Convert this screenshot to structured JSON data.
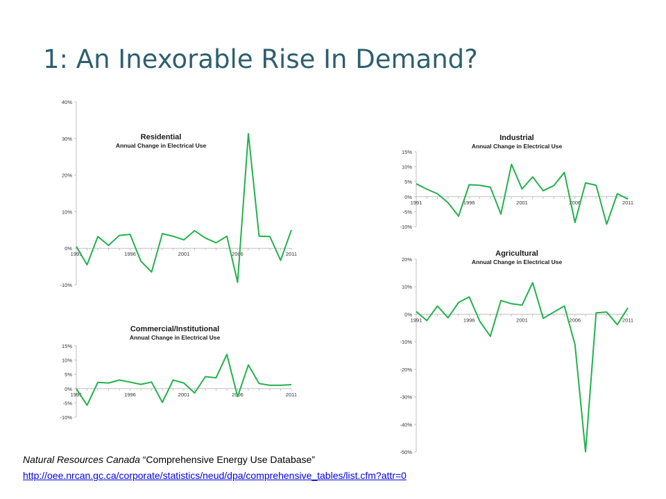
{
  "slide": {
    "title": "1: An Inexorable Rise In Demand?",
    "source_org": "Natural Resources Canada",
    "source_title": "“Comprehensive Energy Use Database”",
    "source_url": "http://oee.nrcan.gc.ca/corporate/statistics/neud/dpa/comprehensive_tables/list.cfm?attr=0"
  },
  "colors": {
    "series": "#22b14c",
    "title": "#2e5f6f",
    "axis": "#bfbfbf",
    "link": "#0000ee"
  },
  "chart_data": [
    {
      "id": "residential",
      "type": "line",
      "title": "Residential",
      "subtitle": "Annual Change in Electrical Use",
      "ylim": [
        -10,
        40
      ],
      "yticks": [
        "40%",
        "30%",
        "20%",
        "10%",
        "0%",
        "-10%"
      ],
      "xticks": [
        "1991",
        "1996",
        "2001",
        "2006",
        "2011"
      ],
      "x": [
        1991,
        1992,
        1993,
        1994,
        1995,
        1996,
        1997,
        1998,
        1999,
        2000,
        2001,
        2002,
        2003,
        2004,
        2005,
        2006,
        2007,
        2008,
        2009,
        2010,
        2011
      ],
      "values": [
        0.5,
        -4.5,
        3.2,
        0.8,
        3.5,
        3.8,
        -3.5,
        -6.5,
        4,
        3.3,
        2.3,
        4.8,
        2.8,
        1.5,
        3.3,
        -9.3,
        31.3,
        3.3,
        3.2,
        -3.3,
        5
      ]
    },
    {
      "id": "commercial",
      "type": "line",
      "title": "Commercial/Institutional",
      "subtitle": "Annual Change in Electrical Use",
      "ylim": [
        -10,
        15
      ],
      "yticks": [
        "15%",
        "10%",
        "5%",
        "0%",
        "-5%",
        "-10%"
      ],
      "xticks": [
        "1991",
        "1996",
        "2001",
        "2006",
        "2011"
      ],
      "x": [
        1991,
        1992,
        1993,
        1994,
        1995,
        1996,
        1997,
        1998,
        1999,
        2000,
        2001,
        2002,
        2003,
        2004,
        2005,
        2006,
        2007,
        2008,
        2009,
        2010,
        2011
      ],
      "values": [
        0,
        -5.8,
        2.2,
        2,
        3,
        2.3,
        1.5,
        2.3,
        -4.8,
        3,
        2,
        -1.5,
        4.2,
        3.8,
        12,
        -2.8,
        8.3,
        1.8,
        1.2,
        1.2,
        1.4
      ]
    },
    {
      "id": "industrial",
      "type": "line",
      "title": "Industrial",
      "subtitle": "Annual Change in Electrical Use",
      "ylim": [
        -10,
        15
      ],
      "yticks": [
        "15%",
        "10%",
        "5%",
        "0%",
        "-5%",
        "-10%"
      ],
      "xticks": [
        "1991",
        "1996",
        "2001",
        "2006",
        "2011"
      ],
      "x": [
        1991,
        1992,
        1993,
        1994,
        1995,
        1996,
        1997,
        1998,
        1999,
        2000,
        2001,
        2002,
        2003,
        2004,
        2005,
        2006,
        2007,
        2008,
        2009,
        2010,
        2011
      ],
      "values": [
        4.3,
        2.5,
        1,
        -2,
        -6.5,
        4,
        3.8,
        3.2,
        -5.8,
        10.8,
        2.6,
        6.6,
        2,
        3.7,
        8.1,
        -8.6,
        4.6,
        3.8,
        -9.2,
        1,
        -0.8
      ]
    },
    {
      "id": "agricultural",
      "type": "line",
      "title": "Agricultural",
      "subtitle": "Annual Change in Electrical Use",
      "ylim": [
        -50,
        20
      ],
      "yticks": [
        "20%",
        "10%",
        "0%",
        "-10%",
        "-20%",
        "-30%",
        "-40%",
        "-50%"
      ],
      "xticks": [
        "1991",
        "1996",
        "2001",
        "2006",
        "2011"
      ],
      "x": [
        1991,
        1992,
        1993,
        1994,
        1995,
        1996,
        1997,
        1998,
        1999,
        2000,
        2001,
        2002,
        2003,
        2004,
        2005,
        2006,
        2007,
        2008,
        2009,
        2010,
        2011
      ],
      "values": [
        1,
        -2.3,
        3,
        -1.3,
        4.3,
        6.3,
        -2.5,
        -8,
        5,
        3.8,
        3.3,
        11.5,
        -1.5,
        0.8,
        3,
        -11,
        -50,
        0.5,
        0.8,
        -3.8,
        2.3
      ]
    }
  ]
}
